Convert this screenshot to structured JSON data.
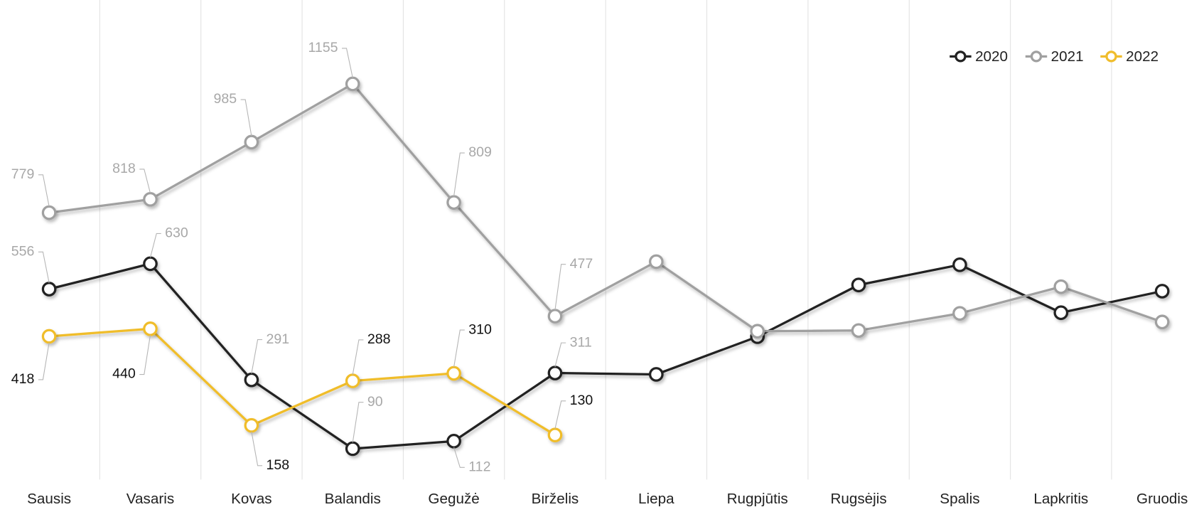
{
  "chart_data": {
    "type": "line",
    "categories": [
      "Sausis",
      "Vasaris",
      "Kovas",
      "Balandis",
      "Gegužė",
      "Birželis",
      "Liepa",
      "Rugpjūtis",
      "Rugsėjis",
      "Spalis",
      "Lapkritis",
      "Gruodis"
    ],
    "series": [
      {
        "name": "2020",
        "color": "#222222",
        "values": [
          556,
          630,
          291,
          90,
          112,
          311,
          307,
          417,
          568,
          627,
          487,
          550
        ],
        "value_labels": [
          "556",
          "630",
          "291",
          "90",
          "112",
          "311",
          null,
          null,
          null,
          null,
          null,
          null
        ]
      },
      {
        "name": "2021",
        "color": "#a0a0a0",
        "values": [
          779,
          818,
          985,
          1155,
          809,
          477,
          636,
          433,
          435,
          485,
          563,
          460
        ],
        "value_labels": [
          "779",
          "818",
          "985",
          "1155",
          "809",
          "477",
          null,
          null,
          null,
          null,
          null,
          null
        ]
      },
      {
        "name": "2022",
        "color": "#f0bd2c",
        "values": [
          418,
          440,
          158,
          288,
          310,
          130,
          null,
          null,
          null,
          null,
          null,
          null
        ],
        "value_labels": [
          "418",
          "440",
          "158",
          "288",
          "310",
          "130",
          null,
          null,
          null,
          null,
          null,
          null
        ]
      }
    ],
    "ylim": [
      0,
      1400
    ],
    "grid": true,
    "legend": "top-right"
  }
}
